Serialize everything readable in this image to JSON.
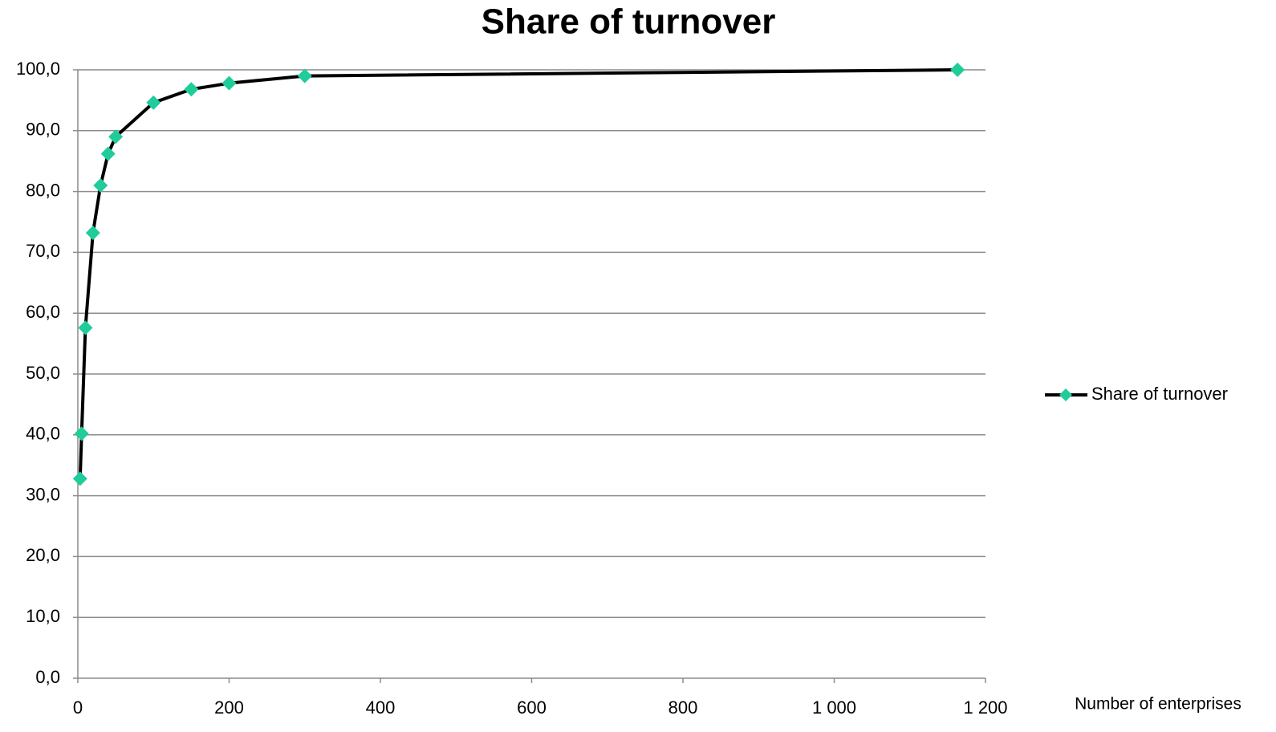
{
  "chart_data": {
    "type": "line",
    "title": "Share of turnover",
    "x_label": "Number of enterprises",
    "x": [
      3,
      5,
      10,
      20,
      30,
      40,
      50,
      100,
      150,
      200,
      300,
      1163
    ],
    "series": [
      {
        "name": "Share of turnover",
        "color": "#000000",
        "marker_color": "#1fcc9a",
        "values": [
          32.8,
          40.2,
          57.6,
          73.2,
          81.0,
          86.2,
          89.0,
          94.6,
          96.8,
          97.8,
          99.0,
          100.0
        ]
      }
    ],
    "xlim": [
      0,
      1200
    ],
    "xticks": [
      0,
      200,
      400,
      600,
      800,
      {
        "value": 1000,
        "label": "1 000"
      },
      {
        "value": 1200,
        "label": "1 200"
      }
    ],
    "ylim": [
      0,
      100
    ],
    "yticks": [
      {
        "value": 0,
        "label": "0,0"
      },
      {
        "value": 10,
        "label": "10,0"
      },
      {
        "value": 20,
        "label": "20,0"
      },
      {
        "value": 30,
        "label": "30,0"
      },
      {
        "value": 40,
        "label": "40,0"
      },
      {
        "value": 50,
        "label": "50,0"
      },
      {
        "value": 60,
        "label": "60,0"
      },
      {
        "value": 70,
        "label": "70,0"
      },
      {
        "value": 80,
        "label": "80,0"
      },
      {
        "value": 90,
        "label": "90,0"
      },
      {
        "value": 100,
        "label": "100,0"
      }
    ],
    "grid": true,
    "legend": "right"
  }
}
